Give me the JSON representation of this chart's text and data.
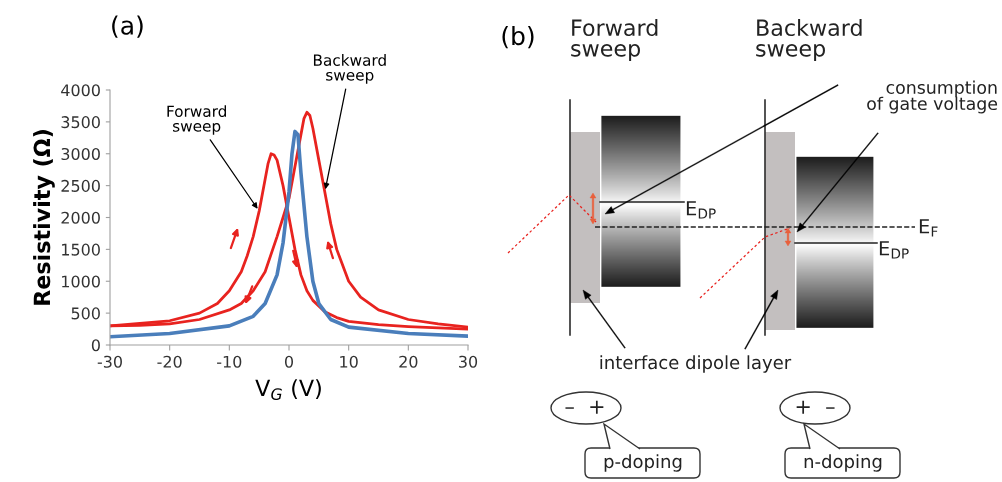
{
  "chart_data": [
    {
      "type": "line",
      "title": "(a)",
      "xlabel": "V$_{G}$ (V)",
      "ylabel": "Resistivity (Ω)",
      "xlim": [
        -30,
        30
      ],
      "xticks": [
        -30,
        -20,
        -10,
        0,
        10,
        20,
        30
      ],
      "ylim": [
        0,
        4000
      ],
      "yticks": [
        0,
        500,
        1000,
        1500,
        2000,
        2500,
        3000,
        3500,
        4000
      ],
      "grid": false,
      "marker": "none",
      "line_style": "solid",
      "series": [
        {
          "color": "#e8231f",
          "x": [
            -30,
            -25,
            -20,
            -15,
            -12,
            -10,
            -8,
            -7,
            -6,
            -5,
            -4,
            -3.5,
            -3,
            -2.5,
            -2,
            -1,
            0,
            1,
            2,
            3,
            4,
            6,
            8,
            10,
            15,
            20,
            25,
            30
          ],
          "values": [
            300,
            340,
            380,
            500,
            650,
            850,
            1150,
            1400,
            1700,
            2100,
            2600,
            2850,
            3000,
            2980,
            2900,
            2500,
            2000,
            1500,
            1100,
            850,
            700,
            520,
            430,
            370,
            320,
            290,
            270,
            250
          ]
        },
        {
          "color": "#e8231f",
          "x": [
            -30,
            -25,
            -20,
            -15,
            -10,
            -8,
            -6,
            -4,
            -2,
            -1,
            0,
            1,
            2,
            2.5,
            3,
            3.5,
            4,
            5,
            6,
            7,
            8,
            10,
            12,
            15,
            20,
            25,
            30
          ],
          "values": [
            300,
            310,
            330,
            400,
            550,
            650,
            850,
            1150,
            1700,
            2000,
            2300,
            2800,
            3300,
            3550,
            3650,
            3600,
            3400,
            2900,
            2400,
            1900,
            1500,
            1000,
            750,
            550,
            400,
            330,
            280
          ]
        },
        {
          "color": "#4a7ebb",
          "x": [
            -30,
            -20,
            -10,
            -6,
            -4,
            -2,
            -1,
            0,
            0.5,
            1,
            1.5,
            2,
            3,
            4,
            5,
            7,
            10,
            20,
            30
          ],
          "values": [
            130,
            180,
            300,
            450,
            650,
            1100,
            1600,
            2400,
            3000,
            3350,
            3300,
            2700,
            1700,
            1000,
            650,
            400,
            280,
            180,
            140
          ]
        }
      ],
      "annotations": [
        {
          "text": "Forward sweep",
          "x": -5,
          "y": 2100
        },
        {
          "text": "Backward sweep",
          "x": 6,
          "y": 2400
        }
      ]
    },
    {
      "type": "other",
      "title": "(b)",
      "annotations": [
        "Forward sweep",
        "Backward sweep",
        "consumption of gate voltage",
        "E$_{DP}$",
        "E$_{F}$",
        "E$_{DP}$",
        "interface dipole layer",
        "–  +",
        "+  –",
        "p-doping",
        "n-doping"
      ]
    }
  ]
}
